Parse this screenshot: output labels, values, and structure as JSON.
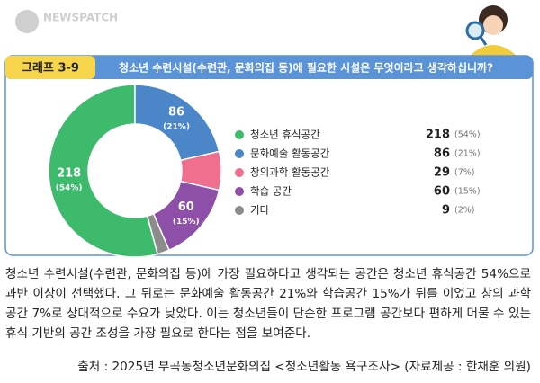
{
  "watermark": "NEWSPATCH",
  "chart_data": {
    "type": "donut",
    "figure_label": "그래프 3-9",
    "title": "청소년 수련시설(수련관, 문화의집 등)에 필요한 시설은 무엇이라고 생각하십니까?",
    "categories": [
      "청소년 휴식공간",
      "문화예술 활동공간",
      "창의과학 활동공간",
      "학습 공간",
      "기타"
    ],
    "values": [
      218,
      86,
      29,
      60,
      9
    ],
    "shares": [
      54,
      21,
      7,
      15,
      2
    ],
    "share_labels": [
      "(54%)",
      "(21%)",
      "(7%)",
      "(15%)",
      "(2%)"
    ],
    "colors": [
      "#3dba6c",
      "#4a86c8",
      "#ef6f8e",
      "#8e4fa8",
      "#8c8c8c"
    ]
  },
  "body_text": "청소년 수련시설(수련관, 문화의집 등)에 가장 필요하다고 생각되는 공간은 청소년 휴식공간 54%으로 과반 이상이 선택했다. 그 뒤로는 문화예술 활동공간 21%와 학습공간 15%가 뒤를 이었고 창의 과학 공간 7%로 상대적으로 수요가 낮았다. 이는 청소년들이 단순한 프로그램 공간보다 편하게 머물 수 있는 휴식 기반의 공간 조성을 가장 필요로 한다는 점을 보여준다.",
  "source": "출처 : 2025년 부곡동청소년문화의집 <청소년활동 욕구조사> (자료제공 : 한채훈 의원)"
}
